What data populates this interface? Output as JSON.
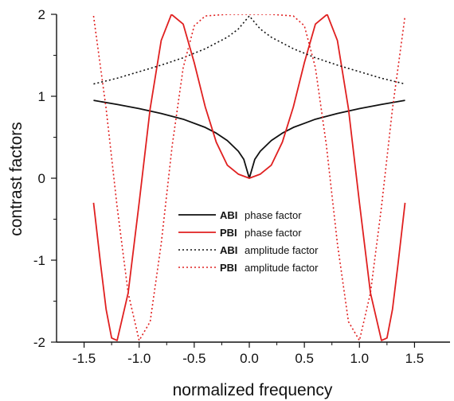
{
  "chart_data": {
    "type": "line",
    "xlabel": "normalized frequency",
    "ylabel": "contrast factors",
    "xlim": [
      -1.75,
      1.75
    ],
    "ylim": [
      -2,
      2
    ],
    "xticks": [
      "-1.5",
      "-1.0",
      "-0.5",
      "0.0",
      "0.5",
      "1.0",
      "1.5"
    ],
    "yticks": [
      "-2",
      "-1",
      "0",
      "1",
      "2"
    ],
    "grid": false,
    "legend_position": "center",
    "series": [
      {
        "abbr": "ABI",
        "name": "phase factor",
        "color": "#111111",
        "style": "solid",
        "x": [
          -1.414,
          -1.2,
          -1.0,
          -0.8,
          -0.6,
          -0.4,
          -0.3,
          -0.2,
          -0.1,
          -0.05,
          0,
          0.05,
          0.1,
          0.2,
          0.3,
          0.4,
          0.6,
          0.8,
          1.0,
          1.2,
          1.414
        ],
        "y": [
          0.95,
          0.9,
          0.85,
          0.79,
          0.72,
          0.62,
          0.55,
          0.46,
          0.33,
          0.23,
          0.0,
          0.23,
          0.33,
          0.46,
          0.55,
          0.62,
          0.72,
          0.79,
          0.85,
          0.9,
          0.95
        ]
      },
      {
        "abbr": "PBI",
        "name": "phase factor",
        "color": "#e02020",
        "style": "solid",
        "x": [
          -1.414,
          -1.35,
          -1.3,
          -1.25,
          -1.2,
          -1.1,
          -1.0,
          -0.9,
          -0.8,
          -0.707,
          -0.6,
          -0.5,
          -0.4,
          -0.3,
          -0.2,
          -0.1,
          0,
          0.1,
          0.2,
          0.3,
          0.4,
          0.5,
          0.6,
          0.707,
          0.8,
          0.9,
          1.0,
          1.1,
          1.2,
          1.25,
          1.3,
          1.35,
          1.414
        ],
        "y": [
          -0.3,
          -1.05,
          -1.6,
          -1.95,
          -1.98,
          -1.4,
          -0.3,
          0.85,
          1.68,
          2.0,
          1.88,
          1.41,
          0.87,
          0.44,
          0.16,
          0.05,
          0.0,
          0.05,
          0.16,
          0.44,
          0.87,
          1.41,
          1.88,
          2.0,
          1.68,
          0.85,
          -0.3,
          -1.4,
          -1.98,
          -1.95,
          -1.6,
          -1.05,
          -0.3
        ]
      },
      {
        "abbr": "ABI",
        "name": "amplitude factor",
        "color": "#111111",
        "style": "dotted",
        "x": [
          -1.414,
          -1.2,
          -1.0,
          -0.8,
          -0.6,
          -0.4,
          -0.2,
          -0.1,
          0,
          0.1,
          0.2,
          0.4,
          0.6,
          0.8,
          1.0,
          1.2,
          1.414
        ],
        "y": [
          1.15,
          1.22,
          1.3,
          1.38,
          1.47,
          1.58,
          1.72,
          1.82,
          1.98,
          1.82,
          1.72,
          1.58,
          1.47,
          1.38,
          1.3,
          1.22,
          1.15
        ]
      },
      {
        "abbr": "PBI",
        "name": "amplitude factor",
        "color": "#e02020",
        "style": "dotted",
        "x": [
          -1.414,
          -1.3,
          -1.2,
          -1.1,
          -1.0,
          -0.9,
          -0.8,
          -0.7,
          -0.6,
          -0.5,
          -0.4,
          -0.3,
          -0.2,
          -0.1,
          0,
          0.1,
          0.2,
          0.3,
          0.4,
          0.5,
          0.6,
          0.7,
          0.8,
          0.9,
          1.0,
          1.1,
          1.2,
          1.3,
          1.414
        ],
        "y": [
          1.98,
          0.85,
          -0.35,
          -1.4,
          -1.98,
          -1.75,
          -0.8,
          0.4,
          1.35,
          1.86,
          1.98,
          1.99,
          2.0,
          2.0,
          2.0,
          2.0,
          2.0,
          1.99,
          1.98,
          1.86,
          1.35,
          0.4,
          -0.8,
          -1.75,
          -1.98,
          -1.4,
          -0.35,
          0.85,
          1.98
        ]
      }
    ]
  }
}
